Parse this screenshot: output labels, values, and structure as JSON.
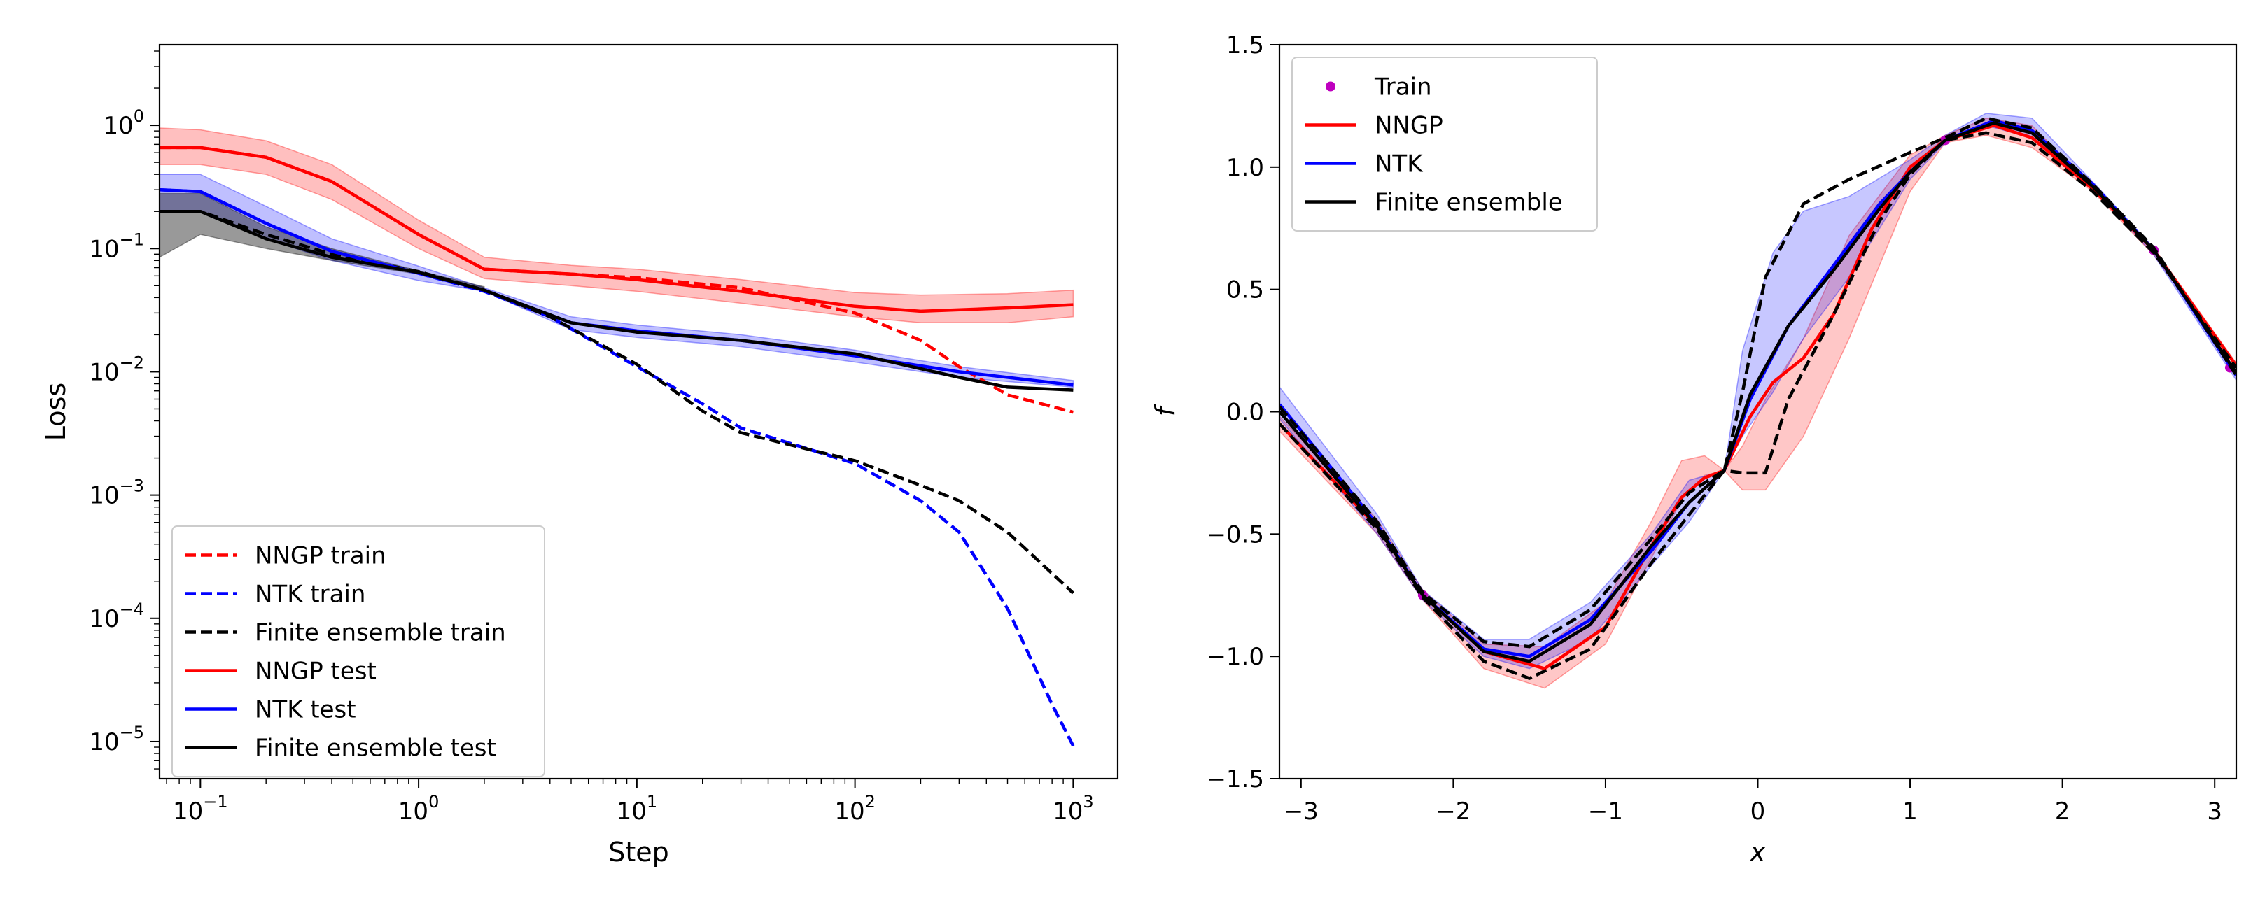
{
  "chart_data": [
    {
      "type": "line",
      "xlabel": "Step",
      "ylabel": "Loss",
      "xscale": "log",
      "yscale": "log",
      "xlim": [
        0.065,
        1600
      ],
      "ylim": [
        5e-06,
        4.5
      ],
      "xticks": [
        {
          "v": 0.1,
          "base": "10",
          "exp": "−1"
        },
        {
          "v": 1,
          "base": "10",
          "exp": "0"
        },
        {
          "v": 10,
          "base": "10",
          "exp": "1"
        },
        {
          "v": 100,
          "base": "10",
          "exp": "2"
        },
        {
          "v": 1000,
          "base": "10",
          "exp": "3"
        }
      ],
      "yticks": [
        {
          "v": 1e-05,
          "base": "10",
          "exp": "−5"
        },
        {
          "v": 0.0001,
          "base": "10",
          "exp": "−4"
        },
        {
          "v": 0.001,
          "base": "10",
          "exp": "−3"
        },
        {
          "v": 0.01,
          "base": "10",
          "exp": "−2"
        },
        {
          "v": 0.1,
          "base": "10",
          "exp": "−1"
        },
        {
          "v": 1,
          "base": "10",
          "exp": "0"
        }
      ],
      "legend_position": "lower-left",
      "bands": [
        {
          "color": "#ff0000",
          "opacity": 0.25,
          "x": [
            0.065,
            0.1,
            0.2,
            0.4,
            1,
            2,
            5,
            10,
            30,
            100,
            200,
            500,
            1000
          ],
          "lower": [
            0.48,
            0.48,
            0.4,
            0.25,
            0.1,
            0.057,
            0.05,
            0.045,
            0.036,
            0.028,
            0.025,
            0.025,
            0.028
          ],
          "upper": [
            0.95,
            0.92,
            0.75,
            0.48,
            0.17,
            0.085,
            0.073,
            0.068,
            0.056,
            0.044,
            0.042,
            0.043,
            0.046
          ]
        },
        {
          "color": "#0000ff",
          "opacity": 0.25,
          "x": [
            0.065,
            0.1,
            0.2,
            0.4,
            1,
            2,
            5,
            10,
            30,
            100,
            300,
            1000
          ],
          "lower": [
            0.2,
            0.2,
            0.12,
            0.08,
            0.055,
            0.045,
            0.022,
            0.019,
            0.016,
            0.012,
            0.009,
            0.0075
          ],
          "upper": [
            0.4,
            0.4,
            0.22,
            0.12,
            0.072,
            0.048,
            0.028,
            0.024,
            0.02,
            0.015,
            0.011,
            0.0085
          ]
        },
        {
          "color": "#000000",
          "opacity": 0.4,
          "x": [
            0.065,
            0.1,
            0.2,
            0.4,
            1,
            2
          ],
          "lower": [
            0.085,
            0.13,
            0.1,
            0.08,
            0.062,
            0.048
          ],
          "upper": [
            0.28,
            0.28,
            0.15,
            0.1,
            0.066,
            0.049
          ]
        }
      ],
      "series": [
        {
          "name": "NNGP train",
          "color": "#ff0000",
          "dash": true,
          "x": [
            0.065,
            0.1,
            0.2,
            0.4,
            1,
            2,
            5,
            10,
            30,
            100,
            200,
            300,
            500,
            1000
          ],
          "y": [
            0.66,
            0.66,
            0.55,
            0.35,
            0.13,
            0.068,
            0.062,
            0.058,
            0.048,
            0.03,
            0.018,
            0.011,
            0.0065,
            0.0047
          ]
        },
        {
          "name": "NTK train",
          "color": "#0000ff",
          "dash": true,
          "x": [
            0.065,
            0.1,
            0.2,
            0.4,
            1,
            2,
            4,
            10,
            20,
            30,
            100,
            200,
            300,
            500,
            800,
            1000
          ],
          "y": [
            0.3,
            0.29,
            0.16,
            0.095,
            0.063,
            0.045,
            0.028,
            0.011,
            0.0055,
            0.0035,
            0.0018,
            0.0009,
            0.0005,
            0.00012,
            2e-05,
            9.2e-06
          ]
        },
        {
          "name": "Finite ensemble train",
          "color": "#000000",
          "dash": true,
          "x": [
            0.065,
            0.1,
            0.2,
            0.4,
            1,
            2,
            4,
            10,
            20,
            30,
            100,
            200,
            300,
            500,
            1000
          ],
          "y": [
            0.2,
            0.2,
            0.13,
            0.09,
            0.065,
            0.046,
            0.028,
            0.0115,
            0.0048,
            0.0032,
            0.0019,
            0.0012,
            0.0009,
            0.0005,
            0.00016
          ]
        },
        {
          "name": "NNGP test",
          "color": "#ff0000",
          "dash": false,
          "x": [
            0.065,
            0.1,
            0.2,
            0.4,
            1,
            2,
            5,
            10,
            30,
            100,
            200,
            500,
            1000
          ],
          "y": [
            0.66,
            0.66,
            0.55,
            0.35,
            0.13,
            0.068,
            0.062,
            0.056,
            0.045,
            0.034,
            0.031,
            0.033,
            0.035
          ]
        },
        {
          "name": "NTK test",
          "color": "#0000ff",
          "dash": false,
          "x": [
            0.065,
            0.1,
            0.2,
            0.4,
            1,
            2,
            5,
            10,
            30,
            100,
            300,
            1000
          ],
          "y": [
            0.3,
            0.29,
            0.16,
            0.095,
            0.063,
            0.046,
            0.025,
            0.0215,
            0.018,
            0.0135,
            0.01,
            0.0078
          ]
        },
        {
          "name": "Finite ensemble test",
          "color": "#000000",
          "dash": false,
          "x": [
            0.065,
            0.1,
            0.2,
            0.4,
            1,
            2,
            5,
            10,
            30,
            100,
            300,
            500,
            1000
          ],
          "y": [
            0.2,
            0.2,
            0.12,
            0.085,
            0.064,
            0.046,
            0.025,
            0.021,
            0.018,
            0.014,
            0.009,
            0.0075,
            0.0071
          ]
        }
      ]
    },
    {
      "type": "line",
      "xlabel": "x",
      "ylabel": "f",
      "xlim": [
        -3.1416,
        3.1416
      ],
      "ylim": [
        -1.5,
        1.5
      ],
      "xticks": [
        -3,
        -2,
        -1,
        0,
        1,
        2,
        3
      ],
      "xtick_labels": [
        "−3",
        "−2",
        "−1",
        "0",
        "1",
        "2",
        "3"
      ],
      "yticks": [
        -1.5,
        -1.0,
        -0.5,
        0.0,
        0.5,
        1.0,
        1.5
      ],
      "ytick_labels": [
        "−1.5",
        "−1.0",
        "−0.5",
        "0.0",
        "0.5",
        "1.0",
        "1.5"
      ],
      "legend_position": "top-left",
      "bands": [
        {
          "color": "#ff0000",
          "opacity": 0.22,
          "x": [
            -3.14,
            -2.5,
            -2.2,
            -1.8,
            -1.4,
            -1.0,
            -0.7,
            -0.5,
            -0.35,
            -0.22,
            -0.1,
            0.05,
            0.3,
            0.6,
            1.0,
            1.23,
            1.5,
            1.8,
            2.2,
            2.6,
            3.14
          ],
          "lower": [
            -0.08,
            -0.5,
            -0.77,
            -1.05,
            -1.13,
            -0.95,
            -0.6,
            -0.36,
            -0.26,
            -0.24,
            -0.32,
            -0.32,
            -0.1,
            0.3,
            0.9,
            1.1,
            1.13,
            1.08,
            0.9,
            0.64,
            0.18
          ],
          "upper": [
            -0.02,
            -0.44,
            -0.73,
            -0.95,
            -0.96,
            -0.78,
            -0.45,
            -0.2,
            -0.18,
            -0.24,
            -0.14,
            0.05,
            0.3,
            0.72,
            1.05,
            1.13,
            1.2,
            1.17,
            0.92,
            0.67,
            0.2
          ]
        },
        {
          "color": "#0000ff",
          "opacity": 0.22,
          "x": [
            -3.14,
            -2.5,
            -2.2,
            -1.8,
            -1.5,
            -1.1,
            -0.7,
            -0.45,
            -0.22,
            -0.1,
            0.1,
            0.3,
            0.6,
            1.0,
            1.23,
            1.5,
            1.8,
            2.2,
            2.6,
            3.14
          ],
          "lower": [
            -0.03,
            -0.5,
            -0.77,
            -1.0,
            -1.05,
            -0.93,
            -0.63,
            -0.45,
            -0.24,
            -0.1,
            0.08,
            0.3,
            0.55,
            0.95,
            1.1,
            1.17,
            1.12,
            0.92,
            0.64,
            0.13
          ],
          "upper": [
            0.1,
            -0.42,
            -0.73,
            -0.93,
            -0.93,
            -0.78,
            -0.5,
            -0.28,
            -0.24,
            0.25,
            0.65,
            0.82,
            0.88,
            1.03,
            1.13,
            1.22,
            1.2,
            0.94,
            0.67,
            0.16
          ]
        }
      ],
      "series": [
        {
          "name": "Train",
          "color": "#bf00bf",
          "marker": "dot",
          "x": [
            -2.2,
            1.23,
            2.6,
            3.1
          ],
          "y": [
            -0.75,
            1.11,
            0.66,
            0.18
          ]
        },
        {
          "name": "NNGP",
          "color": "#ff0000",
          "dash": false,
          "x": [
            -3.14,
            -2.5,
            -2.2,
            -1.8,
            -1.4,
            -1.0,
            -0.7,
            -0.5,
            -0.35,
            -0.22,
            -0.05,
            0.1,
            0.3,
            0.5,
            0.75,
            1.0,
            1.23,
            1.55,
            1.8,
            2.2,
            2.6,
            3.14
          ],
          "y": [
            -0.05,
            -0.47,
            -0.75,
            -0.98,
            -1.05,
            -0.88,
            -0.55,
            -0.35,
            -0.27,
            -0.24,
            -0.02,
            0.12,
            0.22,
            0.4,
            0.75,
            1.0,
            1.11,
            1.17,
            1.12,
            0.91,
            0.66,
            0.19
          ]
        },
        {
          "name": "NTK",
          "color": "#0000ff",
          "dash": false,
          "x": [
            -3.14,
            -2.5,
            -2.2,
            -1.8,
            -1.5,
            -1.1,
            -0.7,
            -0.45,
            -0.22,
            -0.05,
            0.2,
            0.5,
            0.8,
            1.0,
            1.23,
            1.55,
            1.8,
            2.2,
            2.6,
            3.14
          ],
          "y": [
            0.03,
            -0.46,
            -0.75,
            -0.97,
            -1.0,
            -0.85,
            -0.57,
            -0.37,
            -0.24,
            0.05,
            0.35,
            0.6,
            0.85,
            0.98,
            1.11,
            1.19,
            1.15,
            0.93,
            0.66,
            0.15
          ]
        },
        {
          "name": "Finite ensemble",
          "color": "#000000",
          "dash": false,
          "x": [
            -3.14,
            -2.5,
            -2.2,
            -1.8,
            -1.5,
            -1.1,
            -0.7,
            -0.45,
            -0.22,
            -0.05,
            0.2,
            0.5,
            0.8,
            1.0,
            1.23,
            1.55,
            1.8,
            2.2,
            2.6,
            3.14
          ],
          "y": [
            0.0,
            -0.47,
            -0.75,
            -0.98,
            -1.02,
            -0.87,
            -0.55,
            -0.37,
            -0.24,
            0.07,
            0.35,
            0.58,
            0.83,
            0.98,
            1.11,
            1.18,
            1.14,
            0.92,
            0.66,
            0.16
          ]
        },
        {
          "name": "",
          "color": "#000000",
          "dash": true,
          "x": [
            -3.14,
            -2.5,
            -2.2,
            -1.8,
            -1.5,
            -1.1,
            -0.7,
            -0.45,
            -0.22,
            -0.1,
            0.05,
            0.2,
            0.5,
            0.8,
            1.0,
            1.23,
            1.5,
            1.8,
            2.2,
            2.6,
            3.14
          ],
          "y": [
            -0.05,
            -0.48,
            -0.76,
            -1.02,
            -1.09,
            -0.97,
            -0.62,
            -0.42,
            -0.24,
            -0.25,
            -0.25,
            0.05,
            0.4,
            0.78,
            0.97,
            1.11,
            1.14,
            1.1,
            0.9,
            0.65,
            0.18
          ]
        },
        {
          "name": "",
          "color": "#000000",
          "dash": true,
          "x": [
            -3.14,
            -2.5,
            -2.2,
            -1.8,
            -1.5,
            -1.1,
            -0.7,
            -0.45,
            -0.22,
            -0.1,
            0.05,
            0.3,
            0.6,
            1.0,
            1.23,
            1.5,
            1.8,
            2.2,
            2.6,
            3.14
          ],
          "y": [
            0.02,
            -0.45,
            -0.74,
            -0.94,
            -0.96,
            -0.81,
            -0.52,
            -0.33,
            -0.24,
            0.08,
            0.55,
            0.85,
            0.95,
            1.06,
            1.12,
            1.2,
            1.16,
            0.93,
            0.67,
            0.15
          ]
        }
      ]
    }
  ]
}
